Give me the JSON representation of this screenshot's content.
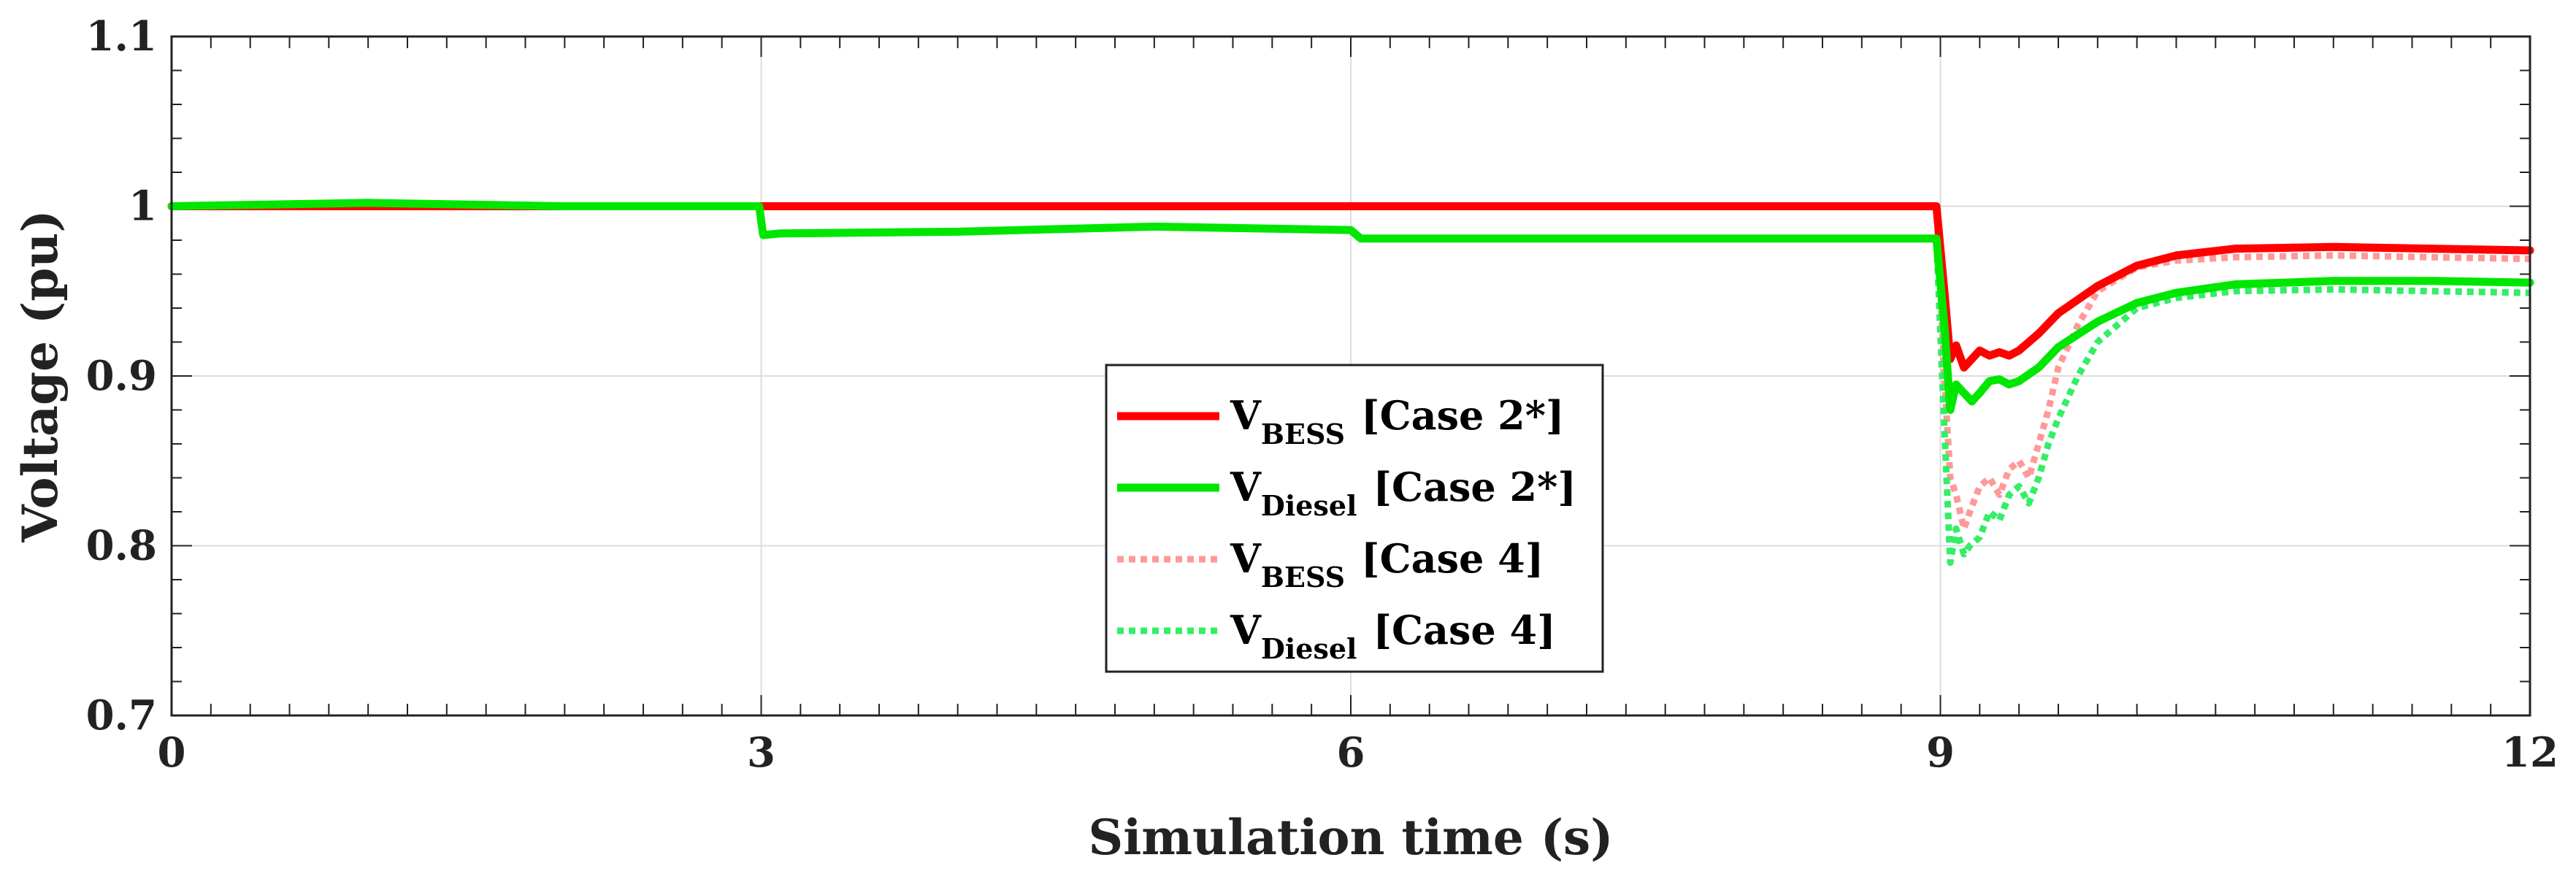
{
  "chart_data": {
    "type": "line",
    "title": "",
    "xlabel": "Simulation time (s)",
    "ylabel": "Voltage (pu)",
    "xlim": [
      0,
      12
    ],
    "ylim": [
      0.7,
      1.1
    ],
    "xticks": [
      0,
      3,
      6,
      9,
      12
    ],
    "xtick_labels": [
      "0",
      "3",
      "6",
      "9",
      "12"
    ],
    "yticks": [
      0.7,
      0.8,
      0.9,
      1.0,
      1.1
    ],
    "ytick_labels": [
      "0.7",
      "0.8",
      "0.9",
      "1",
      "1.1"
    ],
    "grid": true,
    "legend_position": "center",
    "series": [
      {
        "name": "V_BESS [Case 2*]",
        "legend_main": "V",
        "legend_sub": "BESS",
        "legend_tail": "[Case 2*]",
        "color": "#ff0000",
        "style": "solid",
        "x": [
          0,
          3,
          6,
          8.98,
          9.02,
          9.05,
          9.08,
          9.12,
          9.16,
          9.2,
          9.25,
          9.3,
          9.35,
          9.4,
          9.5,
          9.6,
          9.8,
          10.0,
          10.2,
          10.5,
          11.0,
          11.5,
          12.0
        ],
        "y": [
          1.0,
          1.0,
          1.0,
          1.0,
          0.95,
          0.91,
          0.918,
          0.905,
          0.91,
          0.915,
          0.912,
          0.914,
          0.912,
          0.915,
          0.925,
          0.937,
          0.953,
          0.965,
          0.971,
          0.975,
          0.976,
          0.975,
          0.974
        ]
      },
      {
        "name": "V_Diesel [Case 2*]",
        "legend_main": "V",
        "legend_sub": "Diesel",
        "legend_tail": "[Case 2*]",
        "color": "#00e600",
        "style": "solid",
        "x": [
          0,
          1,
          2,
          2.99,
          3.01,
          3.1,
          4,
          5,
          6,
          6.05,
          7,
          8,
          8.98,
          9.02,
          9.05,
          9.08,
          9.12,
          9.16,
          9.2,
          9.25,
          9.3,
          9.35,
          9.4,
          9.5,
          9.6,
          9.8,
          10.0,
          10.2,
          10.5,
          11.0,
          11.5,
          12.0
        ],
        "y": [
          1.0,
          1.002,
          1.0,
          1.0,
          0.983,
          0.984,
          0.985,
          0.988,
          0.986,
          0.981,
          0.981,
          0.981,
          0.981,
          0.93,
          0.88,
          0.895,
          0.89,
          0.885,
          0.89,
          0.897,
          0.898,
          0.895,
          0.897,
          0.905,
          0.917,
          0.932,
          0.943,
          0.949,
          0.954,
          0.956,
          0.956,
          0.955
        ]
      },
      {
        "name": "V_BESS [Case 4]",
        "legend_main": "V",
        "legend_sub": "BESS",
        "legend_tail": "[Case 4]",
        "color": "#ff9999",
        "style": "dotted",
        "x": [
          0,
          3,
          6,
          8.98,
          9.02,
          9.05,
          9.08,
          9.12,
          9.15,
          9.2,
          9.25,
          9.3,
          9.35,
          9.4,
          9.45,
          9.5,
          9.55,
          9.6,
          9.7,
          9.8,
          10.0,
          10.2,
          10.5,
          11.0,
          11.5,
          12.0
        ],
        "y": [
          1.0,
          1.0,
          1.0,
          1.0,
          0.9,
          0.84,
          0.83,
          0.81,
          0.82,
          0.835,
          0.84,
          0.83,
          0.845,
          0.85,
          0.84,
          0.86,
          0.88,
          0.905,
          0.93,
          0.95,
          0.964,
          0.968,
          0.97,
          0.971,
          0.97,
          0.969
        ]
      },
      {
        "name": "V_Diesel [Case 4]",
        "legend_main": "V",
        "legend_sub": "Diesel",
        "legend_tail": "[Case 4]",
        "color": "#33ee66",
        "style": "dotted",
        "x": [
          0,
          1,
          2,
          2.99,
          3.01,
          3.1,
          4,
          5,
          6,
          6.05,
          7,
          8,
          8.98,
          9.02,
          9.05,
          9.08,
          9.12,
          9.15,
          9.2,
          9.25,
          9.3,
          9.35,
          9.4,
          9.45,
          9.5,
          9.55,
          9.6,
          9.7,
          9.8,
          10.0,
          10.2,
          10.5,
          11.0,
          11.5,
          12.0
        ],
        "y": [
          1.0,
          1.002,
          1.0,
          1.0,
          0.983,
          0.984,
          0.985,
          0.988,
          0.986,
          0.981,
          0.981,
          0.981,
          0.981,
          0.87,
          0.79,
          0.81,
          0.795,
          0.8,
          0.805,
          0.82,
          0.815,
          0.83,
          0.835,
          0.825,
          0.84,
          0.86,
          0.875,
          0.9,
          0.92,
          0.94,
          0.946,
          0.95,
          0.951,
          0.95,
          0.949
        ]
      }
    ]
  }
}
